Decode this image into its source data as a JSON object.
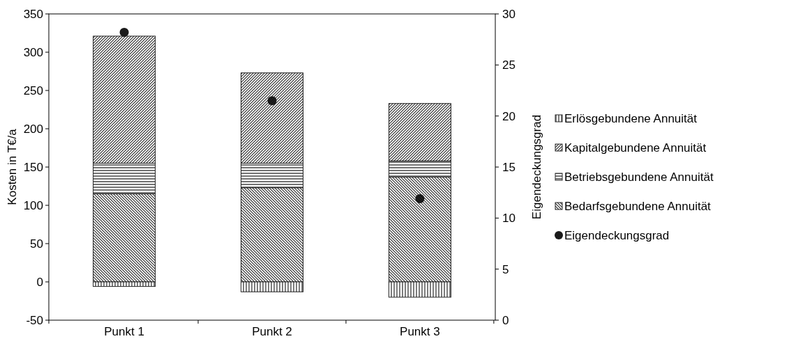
{
  "chart_data": {
    "type": "bar",
    "stacked": true,
    "categories": [
      "Punkt 1",
      "Punkt 2",
      "Punkt 3"
    ],
    "ylabel": "Kosten in T€/a",
    "y2label": "Eigendeckungsgrad",
    "ylim": [
      -50,
      350
    ],
    "yticks": [
      -50,
      0,
      50,
      100,
      150,
      200,
      250,
      300,
      350
    ],
    "y2lim": [
      0,
      30
    ],
    "y2ticks": [
      0,
      5,
      10,
      15,
      20,
      25,
      30
    ],
    "legend": "right",
    "grid": false,
    "series": [
      {
        "name": "Bedarfsgebundene Annuität",
        "color": "#262626",
        "values": [
          115,
          123,
          137
        ]
      },
      {
        "name": "Betriebsgebundene Annuität",
        "color": "#262626",
        "values": [
          40,
          32,
          21
        ]
      },
      {
        "name": "Kapitalgebundene Annuität",
        "color": "#262626",
        "values": [
          166,
          118,
          75
        ]
      },
      {
        "name": "Erlösgebundene Annuität",
        "color": "#262626",
        "values": [
          -6,
          -13,
          -20
        ]
      },
      {
        "name": "Eigendeckungsgrad",
        "type": "scatter",
        "axis": "y2",
        "marker": "circle",
        "color": "#1a1a1a",
        "values": [
          28.2,
          21.5,
          11.9
        ]
      }
    ]
  }
}
